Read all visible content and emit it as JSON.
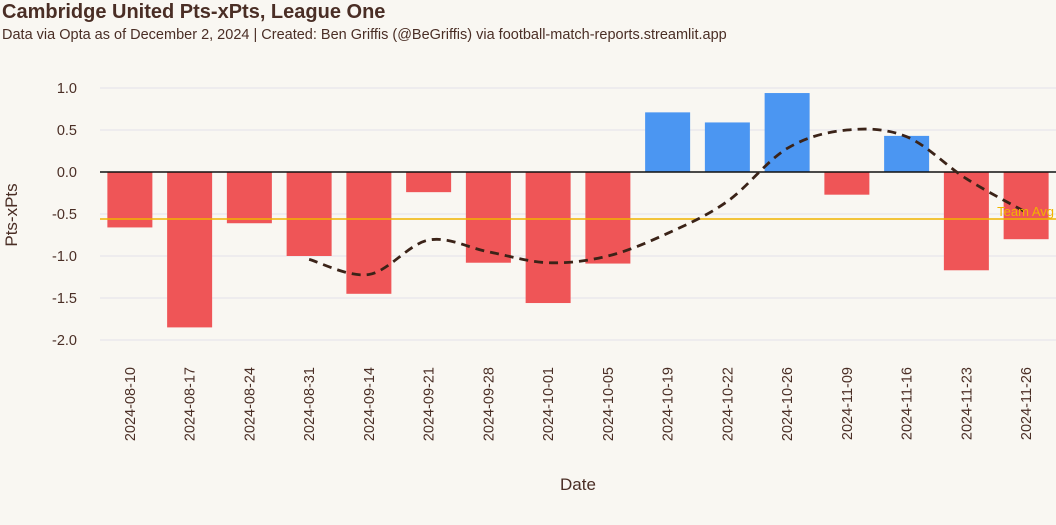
{
  "title": "Cambridge United Pts-xPts, League One",
  "subtitle": "Data via Opta as of December 2, 2024 | Created: Ben Griffis (@BeGriffis) via football-match-reports.streamlit.app",
  "colors": {
    "positive": "#4b96f2",
    "negative": "#ef5557",
    "trend": "#3b2318",
    "avg": "#f0b400",
    "grid": "#e2e2ea",
    "background": "#f9f7f2",
    "text": "#4a2e25"
  },
  "chart_data": {
    "type": "bar",
    "xlabel": "Date",
    "ylabel": "Pts-xPts",
    "ylim": [
      -2.0,
      1.0
    ],
    "yticks": [
      1.0,
      0.5,
      0.0,
      -0.5,
      -1.0,
      -1.5,
      -2.0
    ],
    "ytick_labels": [
      "1.0",
      "0.5",
      "0.0",
      "-0.5",
      "-1.0",
      "-1.5",
      "-2.0"
    ],
    "categories": [
      "2024-08-10",
      "2024-08-17",
      "2024-08-24",
      "2024-08-31",
      "2024-09-14",
      "2024-09-21",
      "2024-09-28",
      "2024-10-01",
      "2024-10-05",
      "2024-10-19",
      "2024-10-22",
      "2024-10-26",
      "2024-11-09",
      "2024-11-16",
      "2024-11-23",
      "2024-11-26"
    ],
    "values": [
      -0.66,
      -1.85,
      -0.61,
      -1.0,
      -1.45,
      -0.24,
      -1.08,
      -1.56,
      -1.09,
      0.71,
      0.59,
      0.94,
      -0.27,
      0.43,
      -1.17,
      -0.8
    ],
    "trend_line": [
      null,
      null,
      null,
      -1.04,
      -1.22,
      -0.81,
      -0.95,
      -1.08,
      -1.0,
      -0.73,
      -0.35,
      0.28,
      0.5,
      0.42,
      -0.08,
      -0.48
    ],
    "reference_line": {
      "value": -0.56,
      "label": "Team Avg"
    },
    "grid": true
  }
}
